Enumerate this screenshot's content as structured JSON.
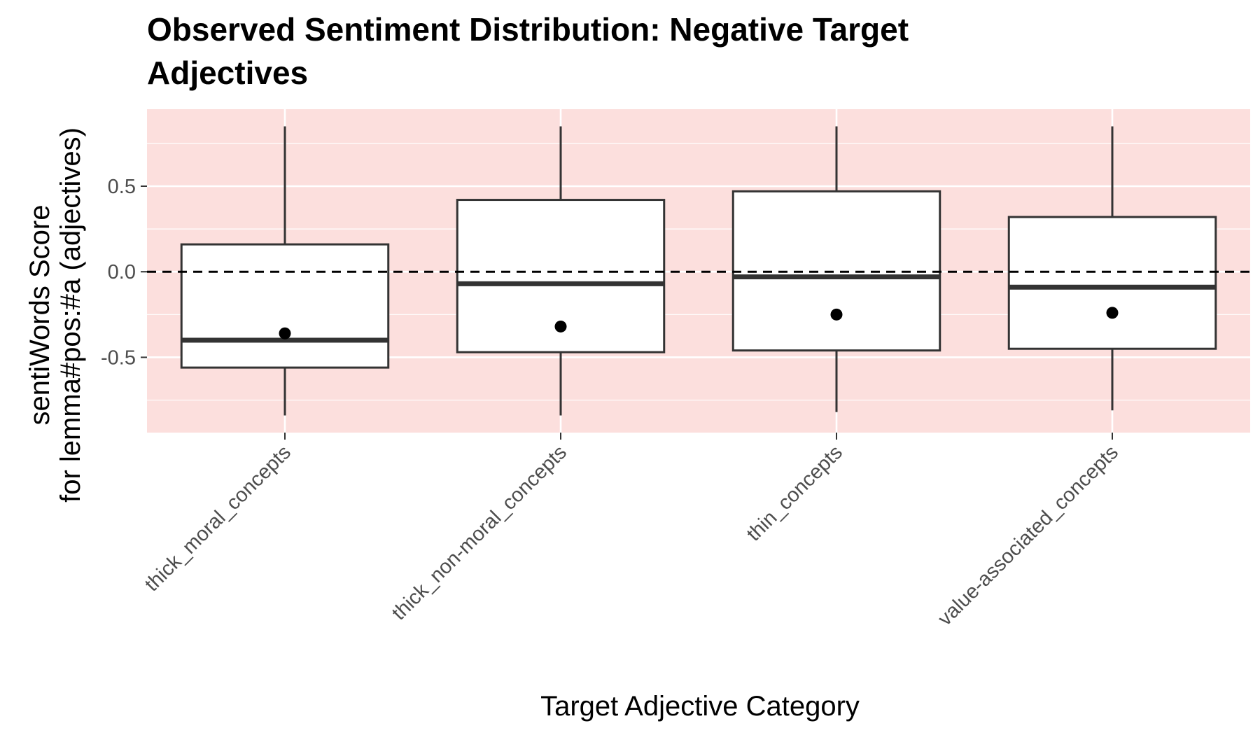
{
  "chart_data": {
    "type": "boxplot",
    "title_lines": [
      "Observed Sentiment Distribution: Negative Target",
      "Adjectives"
    ],
    "xlabel": "Target Adjective Category",
    "ylabel_lines": [
      "sentiWords Score",
      "for lemma#pos:#a (adjectives)"
    ],
    "categories": [
      "thick_moral_concepts",
      "thick_non-moral_concepts",
      "thin_concepts",
      "value-associated_concepts"
    ],
    "boxes": [
      {
        "category": "thick_moral_concepts",
        "whisker_low": -0.84,
        "q1": -0.56,
        "median": -0.4,
        "q3": 0.16,
        "whisker_high": 0.85,
        "mean": -0.36
      },
      {
        "category": "thick_non-moral_concepts",
        "whisker_low": -0.84,
        "q1": -0.47,
        "median": -0.07,
        "q3": 0.42,
        "whisker_high": 0.85,
        "mean": -0.32
      },
      {
        "category": "thin_concepts",
        "whisker_low": -0.82,
        "q1": -0.46,
        "median": -0.03,
        "q3": 0.47,
        "whisker_high": 0.85,
        "mean": -0.25
      },
      {
        "category": "value-associated_concepts",
        "whisker_low": -0.81,
        "q1": -0.45,
        "median": -0.09,
        "q3": 0.32,
        "whisker_high": 0.85,
        "mean": -0.24
      }
    ],
    "y_ticks": [
      -0.5,
      0.0,
      0.5
    ],
    "y_tick_labels": [
      "-0.5",
      "0.0",
      "0.5"
    ],
    "ylim": [
      -0.94,
      0.95
    ],
    "reference_line": {
      "y": 0,
      "style": "dashed"
    },
    "grid": true,
    "legend": "none",
    "colors": {
      "panel_background": "#fcdfdd",
      "grid": "#ffffff",
      "box_fill": "#ffffff",
      "box_stroke": "#333333",
      "tick_label": "#4d4d4d"
    }
  }
}
